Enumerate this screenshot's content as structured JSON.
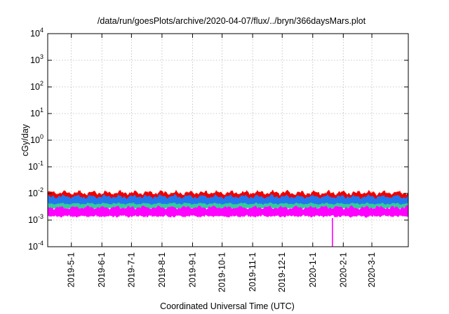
{
  "chart_data": {
    "type": "area",
    "title": "/data/run/goesPlots/archive/2020-04-07/flux/../bryn/366daysMars.plot",
    "xlabel": "Coordinated Universal Time (UTC)",
    "ylabel": "cGy/day",
    "y_scale": "log",
    "ylim": [
      0.0001,
      10000
    ],
    "xlim": [
      "2019-04-07",
      "2020-04-07"
    ],
    "grid": true,
    "y_ticks": [
      {
        "base": "10",
        "exp": "-4",
        "value": 0.0001
      },
      {
        "base": "10",
        "exp": "-3",
        "value": 0.001
      },
      {
        "base": "10",
        "exp": "-2",
        "value": 0.01
      },
      {
        "base": "10",
        "exp": "-1",
        "value": 0.1
      },
      {
        "base": "10",
        "exp": "0",
        "value": 1
      },
      {
        "base": "10",
        "exp": "1",
        "value": 10
      },
      {
        "base": "10",
        "exp": "2",
        "value": 100
      },
      {
        "base": "10",
        "exp": "3",
        "value": 1000
      },
      {
        "base": "10",
        "exp": "4",
        "value": 10000
      }
    ],
    "x_ticks": [
      "2019-5-1",
      "2019-6-1",
      "2019-7-1",
      "2019-8-1",
      "2019-9-1",
      "2019-10-1",
      "2019-11-1",
      "2019-12-1",
      "2020-1-1",
      "2020-2-1",
      "2020-3-1"
    ],
    "series": [
      {
        "color": "#ee0000",
        "low": 0.0035,
        "high": 0.013
      },
      {
        "color": "#2277ee",
        "low": 0.003,
        "high": 0.009
      },
      {
        "color": "#33cc99",
        "low": 0.0025,
        "high": 0.0045
      },
      {
        "color": "#ff00ff",
        "low": 0.0012,
        "high": 0.0035
      }
    ],
    "dropout": {
      "date": "2020-01-21",
      "value": 0.0001
    }
  }
}
